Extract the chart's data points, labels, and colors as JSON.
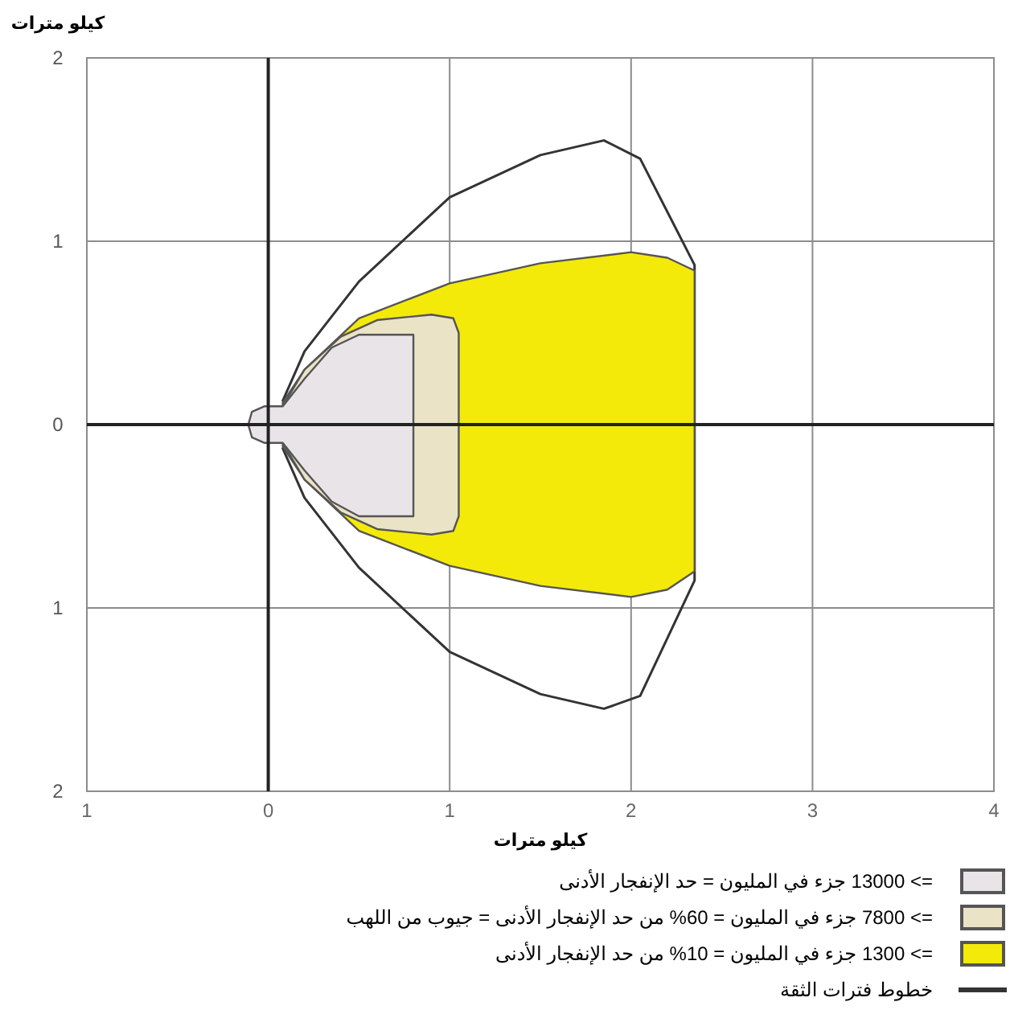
{
  "chart_data": {
    "type": "area",
    "xlabel": "كيلو مترات",
    "ylabel": "كيلو مترات",
    "xlim": [
      -1,
      4
    ],
    "ylim": [
      -2,
      2
    ],
    "xticks": [
      {
        "value": -1,
        "label": "1"
      },
      0,
      1,
      2,
      3,
      4
    ],
    "yticks": [
      {
        "value": -2,
        "label": "2"
      },
      {
        "value": -1,
        "label": "1"
      },
      0,
      1,
      2
    ],
    "grid": true,
    "legend": "bottom",
    "series": [
      {
        "name": "=> 13000 جزء في المليون = حد الإنفجار الأدنى",
        "color": "#e8e4e8",
        "x": [
          0.08,
          0.2,
          0.35,
          0.5,
          0.8,
          0.8,
          0.5,
          0.35,
          0.2,
          0.08,
          0.05,
          -0.02,
          -0.09,
          -0.11,
          -0.09,
          -0.02,
          0.05
        ],
        "values": [
          0.1,
          0.25,
          0.42,
          0.49,
          0.49,
          -0.5,
          -0.5,
          -0.42,
          -0.25,
          -0.1,
          -0.1,
          -0.1,
          -0.07,
          0,
          0.07,
          0.1,
          0.1
        ]
      },
      {
        "name": "=> 7800 جزء في المليون = 60% من حد الإنفجار الأدنى = جيوب من اللهب",
        "color": "#ebe3c6",
        "x": [
          0.08,
          0.2,
          0.4,
          0.6,
          0.9,
          1.02,
          1.05,
          1.05,
          1.02,
          0.9,
          0.6,
          0.4,
          0.2,
          0.08
        ],
        "values": [
          0.1,
          0.3,
          0.48,
          0.57,
          0.6,
          0.58,
          0.5,
          -0.5,
          -0.58,
          -0.6,
          -0.57,
          -0.48,
          -0.3,
          -0.1
        ]
      },
      {
        "name": "=> 1300 جزء في المليون = 10% من حد الإنفجار الأدنى",
        "color": "#f4ea0a",
        "x": [
          0.08,
          0.2,
          0.5,
          1.0,
          1.5,
          2.0,
          2.2,
          2.35,
          2.35,
          2.2,
          2.0,
          1.5,
          1.0,
          0.5,
          0.2,
          0.08
        ],
        "values": [
          0.12,
          0.3,
          0.58,
          0.77,
          0.88,
          0.94,
          0.91,
          0.84,
          -0.8,
          -0.9,
          -0.94,
          -0.88,
          -0.77,
          -0.58,
          -0.3,
          -0.12
        ]
      },
      {
        "name": "خطوط فترات الثقة",
        "type": "line",
        "color": "#333333",
        "x": [
          0.08,
          0.2,
          0.5,
          1.0,
          1.5,
          1.85,
          2.05,
          2.35,
          2.35,
          2.05,
          1.85,
          1.5,
          1.0,
          0.5,
          0.2,
          0.08
        ],
        "values": [
          0.13,
          0.4,
          0.78,
          1.24,
          1.47,
          1.55,
          1.45,
          0.87,
          -0.85,
          -1.48,
          -1.55,
          -1.47,
          -1.24,
          -0.78,
          -0.4,
          -0.13
        ]
      }
    ]
  }
}
